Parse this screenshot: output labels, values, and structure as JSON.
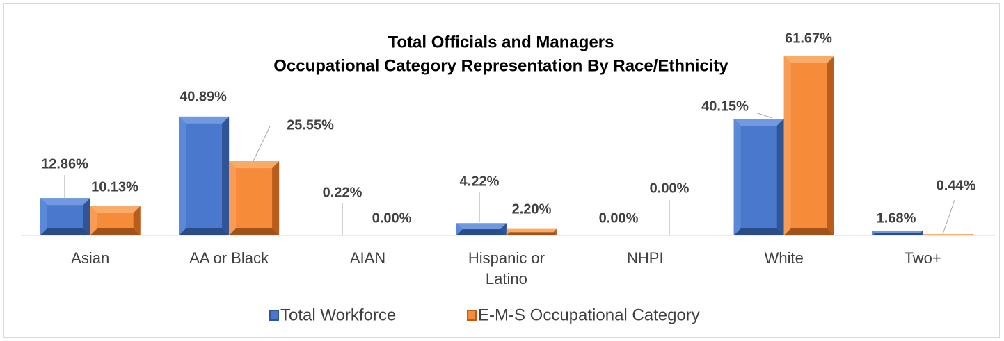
{
  "chart_data": {
    "type": "bar",
    "title": "Total Officials and Managers",
    "subtitle": "Occupational Category Representation By Race/Ethnicity",
    "categories": [
      "Asian",
      "AA or Black",
      "AIAN",
      "Hispanic or Latino",
      "NHPI",
      "White",
      "Two+"
    ],
    "series": [
      {
        "name": "Total Workforce",
        "color": "#4472c4",
        "values": [
          12.86,
          40.89,
          0.22,
          4.22,
          0.0,
          40.15,
          1.68
        ],
        "value_labels": [
          "12.86%",
          "40.89%",
          "0.22%",
          "4.22%",
          "0.00%",
          "40.15%",
          "1.68%"
        ]
      },
      {
        "name": "E-M-S Occupational Category",
        "color": "#ed7d31",
        "values": [
          10.13,
          25.55,
          0.0,
          2.2,
          0.0,
          61.67,
          0.44
        ],
        "value_labels": [
          "10.13%",
          "25.55%",
          "0.00%",
          "2.20%",
          "0.00%",
          "61.67%",
          "0.44%"
        ]
      }
    ],
    "legend": "bottom"
  }
}
